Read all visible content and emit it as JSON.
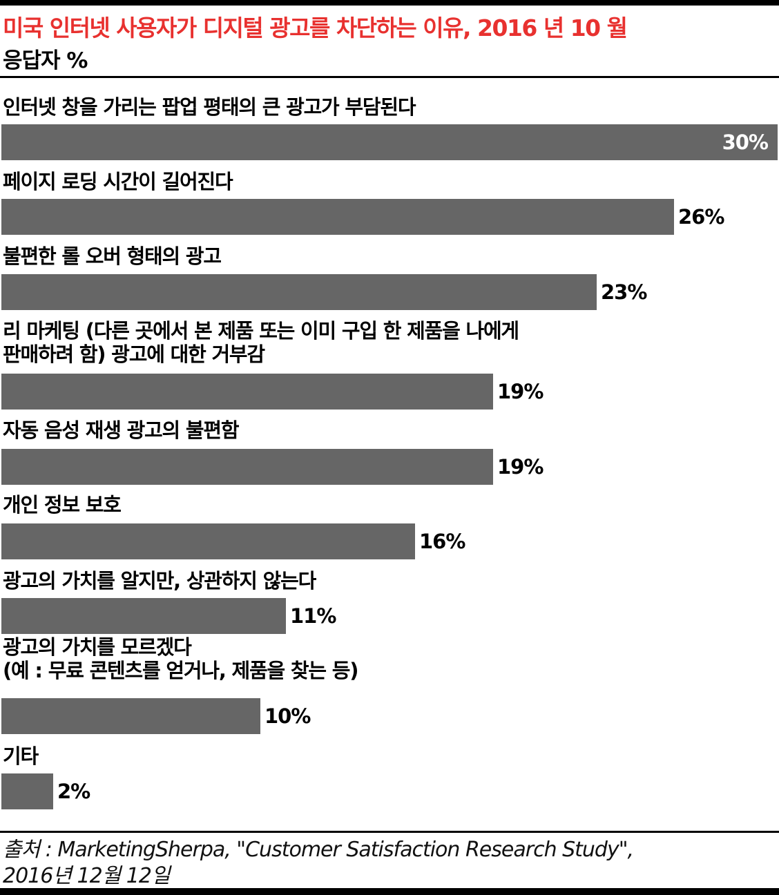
{
  "header": {
    "title": "미국 인터넷 사용자가 디지털 광고를 차단하는 이유, 2016 년 10 월",
    "subtitle": "응답자 %",
    "title_color": "#e8312f"
  },
  "chart_data": {
    "type": "bar",
    "orientation": "horizontal",
    "categories": [
      "인터넷 창을 가리는 팝업 평태의 큰 광고가 부담된다",
      "페이지 로딩 시간이 길어진다",
      "불편한 롤 오버 형태의 광고",
      "리 마케팅 (다른 곳에서 본 제품 또는 이미 구입 한 제품을 나에게\n판매하려 함) 광고에 대한 거부감",
      "자동 음성 재생 광고의 불편함",
      "개인 정보 보호",
      "광고의 가치를 알지만, 상관하지 않는다",
      "광고의 가치를 모르겠다\n(예 : 무료 콘텐츠를 얻거나, 제품을 찾는 등)",
      "기타"
    ],
    "values": [
      30,
      26,
      23,
      19,
      19,
      16,
      11,
      10,
      2
    ],
    "value_labels": [
      "30%",
      "26%",
      "23%",
      "19%",
      "19%",
      "16%",
      "11%",
      "10%",
      "2%"
    ],
    "xlim": [
      0,
      30
    ],
    "bar_color": "#666666",
    "grid": false,
    "legend": "none"
  },
  "footer": {
    "source": "출처 : MarketingSherpa, \"Customer Satisfaction Research Study\",\n2016년 12월 12일"
  }
}
